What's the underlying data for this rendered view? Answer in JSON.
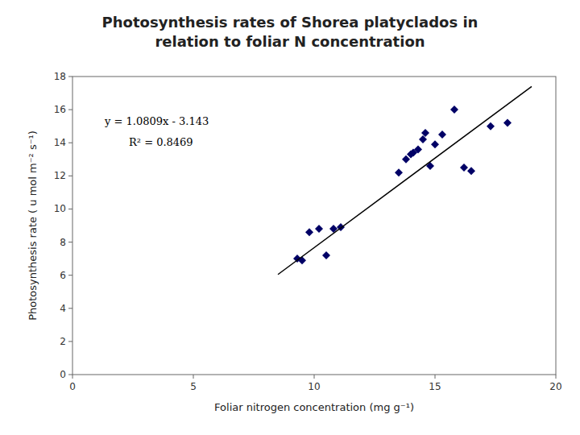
{
  "chart_data": {
    "type": "scatter",
    "title": "Photosynthesis rates of Shorea platyclados in relation to foliar N concentration",
    "x_label": "Foliar nitrogen concentration (mg g⁻¹)",
    "y_label": "Photosynthesis rate ( u mol m⁻² s⁻¹)",
    "annotations": [
      "y = 1.0809x - 3.143",
      "R² = 0.8469"
    ],
    "series": [
      {
        "type": "scatter",
        "color": "#000066",
        "marker": "diamond",
        "x": [
          9.3,
          9.5,
          9.8,
          10.2,
          10.5,
          10.8,
          11.1,
          13.5,
          13.8,
          14.0,
          14.1,
          14.3,
          14.5,
          14.6,
          14.8,
          15.0,
          15.3,
          15.8,
          16.2,
          16.5,
          17.3,
          18.0
        ],
        "values": [
          7.0,
          6.9,
          8.6,
          8.8,
          7.2,
          8.8,
          8.9,
          12.2,
          13.0,
          13.3,
          13.4,
          13.6,
          14.2,
          14.6,
          12.6,
          13.9,
          14.5,
          16.0,
          12.5,
          12.3,
          15.0,
          15.2
        ]
      },
      {
        "type": "line",
        "color": "#000000",
        "x": [
          8.5,
          19.0
        ],
        "values": [
          6.04465,
          17.3941
        ]
      }
    ],
    "xlim": [
      0,
      20
    ],
    "ylim": [
      0,
      18
    ],
    "xticks": [
      0,
      5,
      10,
      15,
      20
    ],
    "yticks": [
      0,
      2,
      4,
      6,
      8,
      10,
      12,
      14,
      16,
      18
    ],
    "grid": false
  }
}
